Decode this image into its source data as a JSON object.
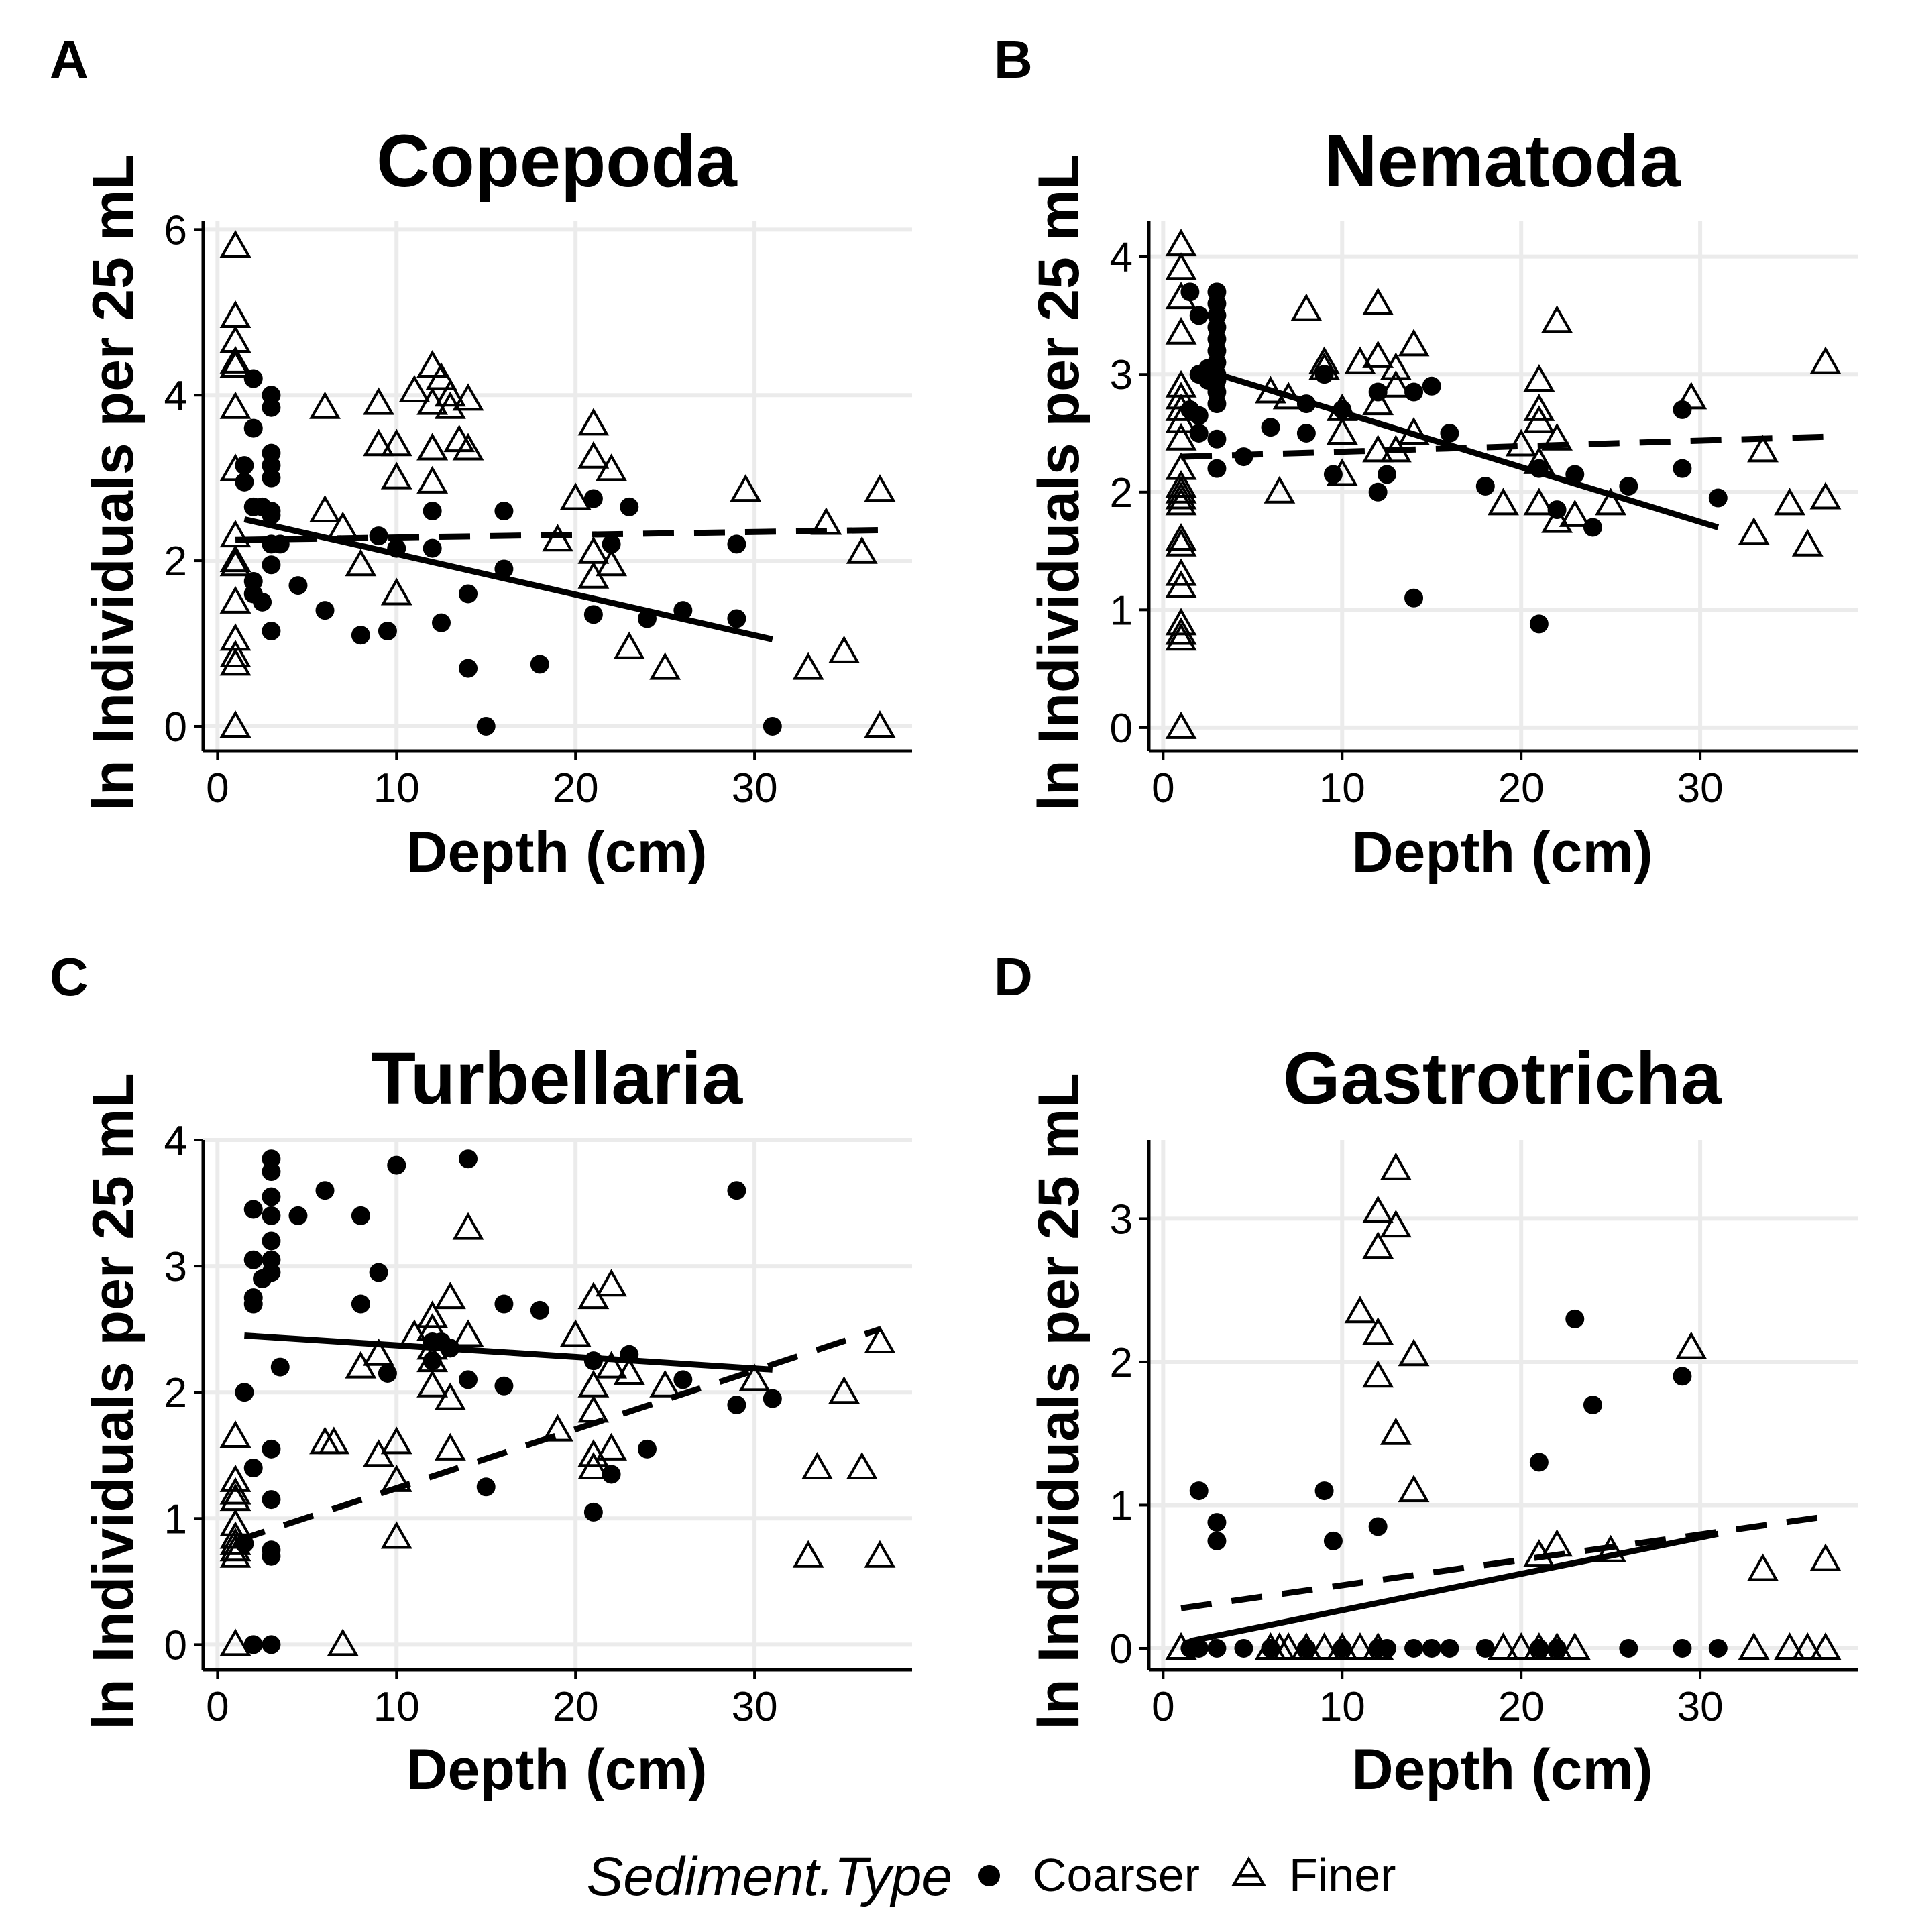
{
  "legend": {
    "title": "Sediment.Type",
    "items": [
      {
        "label": "Coarser",
        "shape": "circle"
      },
      {
        "label": "Finer",
        "shape": "triangle"
      }
    ]
  },
  "colors": {
    "ink": "#000000",
    "grid": "#ebebeb",
    "background": "#ffffff"
  },
  "chart_data": [
    {
      "type": "scatter",
      "panel": "A",
      "title": "Copepoda",
      "xlabel": "Depth (cm)",
      "ylabel": "ln Individuals per 25 mL",
      "xlim": [
        -0.8,
        38.8
      ],
      "ylim": [
        -0.3,
        6.1
      ],
      "xticks": [
        0,
        10,
        20,
        30
      ],
      "yticks": [
        0,
        2,
        4,
        6
      ],
      "grid": true,
      "series": [
        {
          "name": "Coarser",
          "shape": "circle",
          "x": [
            1.5,
            1.5,
            2,
            2,
            2,
            2,
            2,
            2.5,
            2.5,
            3,
            3,
            3,
            3,
            3,
            3,
            3,
            3,
            3,
            3,
            3.5,
            4.5,
            6,
            8,
            9,
            9.5,
            10,
            12,
            12,
            12.5,
            14,
            14,
            15,
            16,
            16,
            18,
            21,
            21,
            22,
            23,
            24,
            26,
            29,
            29,
            31
          ],
          "y": [
            3.15,
            2.95,
            4.2,
            3.6,
            2.65,
            1.75,
            1.6,
            1.5,
            2.65,
            4.0,
            3.85,
            3.3,
            3.15,
            3.0,
            2.6,
            2.55,
            2.2,
            1.95,
            1.15,
            2.2,
            1.7,
            1.4,
            1.1,
            2.3,
            1.15,
            2.15,
            2.6,
            2.15,
            1.25,
            1.6,
            0.7,
            0.0,
            1.9,
            2.6,
            0.75,
            2.75,
            1.35,
            2.2,
            2.65,
            1.3,
            1.4,
            2.2,
            1.3,
            0.0
          ]
        },
        {
          "name": "Finer",
          "shape": "triangle",
          "x": [
            1,
            1,
            1,
            1,
            1,
            1,
            1,
            1,
            1,
            1,
            1,
            1,
            1,
            1,
            1,
            6,
            6,
            7,
            8,
            9,
            9,
            10,
            10,
            10,
            11,
            12,
            12,
            12,
            12,
            12,
            12.5,
            13,
            13,
            13.5,
            14,
            14,
            19,
            20,
            21,
            21,
            21,
            21,
            22,
            22,
            23,
            25,
            29.5,
            33,
            34,
            35,
            36,
            37,
            37
          ],
          "y": [
            5.8,
            4.95,
            4.65,
            4.4,
            4.35,
            3.85,
            3.1,
            2.3,
            2.0,
            1.95,
            1.5,
            1.05,
            0.85,
            0.75,
            0.0,
            2.6,
            3.85,
            2.4,
            1.95,
            3.4,
            3.9,
            3.4,
            3.0,
            1.6,
            4.05,
            4.35,
            3.9,
            3.35,
            3.35,
            2.95,
            4.2,
            3.85,
            4.0,
            3.45,
            3.95,
            3.35,
            2.25,
            2.75,
            3.65,
            3.25,
            2.1,
            1.8,
            3.1,
            1.95,
            0.95,
            0.7,
            2.85,
            0.7,
            2.45,
            0.9,
            2.1,
            2.85,
            0.0
          ]
        }
      ],
      "fits": [
        {
          "series": "Coarser",
          "style": "solid",
          "x": [
            1.5,
            31
          ],
          "y": [
            2.5,
            1.05
          ]
        },
        {
          "series": "Finer",
          "style": "dashed",
          "x": [
            1,
            37
          ],
          "y": [
            2.25,
            2.37
          ]
        }
      ]
    },
    {
      "type": "scatter",
      "panel": "B",
      "title": "Nematoda",
      "xlabel": "Depth (cm)",
      "ylabel": "ln Individuals per 25 mL",
      "xlim": [
        -0.8,
        38.8
      ],
      "ylim": [
        -0.2,
        4.3
      ],
      "xticks": [
        0,
        10,
        20,
        30
      ],
      "yticks": [
        0,
        1,
        2,
        3,
        4
      ],
      "grid": true,
      "series": [
        {
          "name": "Coarser",
          "shape": "circle",
          "x": [
            1.5,
            1.5,
            2,
            2,
            2,
            2,
            2.5,
            2.5,
            3,
            3,
            3,
            3,
            3,
            3,
            3,
            3,
            3,
            3,
            3,
            3,
            3,
            4.5,
            6,
            8,
            8,
            9,
            9.5,
            10,
            12,
            12,
            12.5,
            14,
            14,
            15,
            16,
            18,
            21,
            21,
            22,
            23,
            24,
            26,
            29,
            29,
            31
          ],
          "y": [
            3.7,
            2.7,
            3.5,
            3.0,
            2.65,
            2.5,
            3.05,
            2.95,
            3.7,
            3.6,
            3.5,
            3.4,
            3.3,
            3.2,
            3.1,
            3.0,
            2.95,
            2.85,
            2.75,
            2.45,
            2.2,
            2.3,
            2.55,
            2.75,
            2.5,
            3.0,
            2.15,
            2.7,
            2.85,
            2.0,
            2.15,
            2.85,
            1.1,
            2.9,
            2.5,
            2.05,
            2.2,
            0.88,
            1.85,
            2.15,
            1.7,
            2.05,
            2.7,
            2.2,
            1.95
          ]
        },
        {
          "name": "Finer",
          "shape": "triangle",
          "x": [
            1,
            1,
            1,
            1,
            1,
            1,
            1,
            1,
            1,
            1,
            1,
            1,
            1,
            1,
            1,
            1,
            1,
            1,
            1,
            1,
            1,
            1,
            6,
            6.5,
            7,
            8,
            9,
            9,
            10,
            10,
            10,
            11,
            12,
            12,
            12,
            12,
            13,
            13,
            13,
            14,
            14,
            20,
            19,
            21,
            21,
            21,
            21,
            21,
            22,
            22,
            22,
            23,
            25,
            29.5,
            33,
            33.5,
            35,
            36,
            37,
            37
          ],
          "y": [
            4.1,
            3.9,
            3.65,
            3.35,
            2.9,
            2.8,
            2.7,
            2.6,
            2.45,
            2.2,
            2.05,
            2.0,
            1.95,
            1.9,
            1.6,
            1.55,
            1.3,
            1.2,
            0.88,
            0.8,
            0.75,
            0.0,
            2.85,
            2.0,
            2.8,
            3.55,
            3.1,
            3.05,
            2.7,
            2.5,
            2.15,
            3.1,
            3.6,
            3.15,
            2.75,
            2.35,
            3.05,
            2.9,
            2.35,
            3.25,
            2.5,
            2.4,
            1.9,
            2.95,
            2.7,
            2.6,
            2.25,
            1.9,
            3.45,
            2.45,
            1.75,
            1.8,
            1.9,
            2.8,
            1.65,
            2.35,
            1.9,
            1.55,
            3.1,
            1.95
          ]
        }
      ],
      "fits": [
        {
          "series": "Coarser",
          "style": "solid",
          "x": [
            2,
            31
          ],
          "y": [
            3.05,
            1.7
          ]
        },
        {
          "series": "Finer",
          "style": "dashed",
          "x": [
            1,
            37
          ],
          "y": [
            2.3,
            2.47
          ]
        }
      ]
    },
    {
      "type": "scatter",
      "panel": "C",
      "title": "Turbellaria",
      "xlabel": "Depth (cm)",
      "ylabel": "ln Individuals per 25 mL",
      "xlim": [
        -0.8,
        38.8
      ],
      "ylim": [
        -0.2,
        4.0
      ],
      "xticks": [
        0,
        10,
        20,
        30
      ],
      "yticks": [
        0,
        1,
        2,
        3,
        4
      ],
      "grid": true,
      "series": [
        {
          "name": "Coarser",
          "shape": "circle",
          "x": [
            1.5,
            1.5,
            2,
            2,
            2,
            2,
            2,
            2,
            2.5,
            3,
            3,
            3,
            3,
            3,
            3,
            3,
            3,
            3,
            3,
            3,
            3,
            3.5,
            4.5,
            6,
            8,
            8,
            9,
            9.5,
            10,
            12,
            12,
            12.5,
            13,
            14,
            14,
            15,
            16,
            16,
            18,
            21,
            21,
            22,
            23,
            24,
            26,
            29,
            29,
            31
          ],
          "y": [
            2.0,
            0.8,
            3.45,
            3.05,
            2.75,
            2.7,
            1.4,
            0.0,
            2.9,
            3.85,
            3.75,
            3.55,
            3.4,
            3.2,
            3.05,
            2.95,
            1.55,
            1.15,
            0.75,
            0.7,
            0.0,
            2.2,
            3.4,
            3.6,
            3.4,
            2.7,
            2.95,
            2.15,
            3.8,
            2.4,
            2.25,
            2.4,
            2.35,
            3.85,
            2.1,
            1.25,
            2.7,
            2.05,
            2.65,
            2.25,
            1.05,
            1.35,
            2.3,
            1.55,
            2.1,
            3.6,
            1.9,
            1.95
          ]
        },
        {
          "name": "Finer",
          "shape": "triangle",
          "x": [
            1,
            1,
            1,
            1,
            1,
            1,
            1,
            1,
            1,
            1,
            6,
            6.5,
            7,
            8,
            9,
            9,
            10,
            10,
            10,
            11,
            12,
            12,
            12,
            12,
            12,
            13,
            13,
            13,
            14,
            14,
            19,
            20,
            21,
            21,
            21,
            21,
            21,
            22,
            22,
            22,
            23,
            25,
            30,
            33,
            33.5,
            35,
            36,
            37,
            37
          ],
          "y": [
            1.65,
            1.3,
            1.2,
            1.15,
            0.95,
            0.85,
            0.8,
            0.75,
            0.7,
            0.0,
            1.6,
            1.6,
            0.0,
            2.2,
            2.3,
            1.5,
            1.6,
            1.3,
            0.85,
            2.45,
            2.6,
            2.5,
            2.35,
            2.25,
            2.05,
            2.75,
            1.95,
            1.55,
            3.3,
            2.45,
            1.7,
            2.45,
            2.75,
            2.05,
            1.85,
            1.5,
            1.4,
            2.85,
            2.2,
            1.55,
            2.15,
            2.05,
            2.1,
            0.7,
            1.4,
            2.0,
            1.4,
            2.4,
            0.7
          ]
        }
      ],
      "fits": [
        {
          "series": "Coarser",
          "style": "solid",
          "x": [
            1.5,
            31
          ],
          "y": [
            2.45,
            2.18
          ]
        },
        {
          "series": "Finer",
          "style": "dashed",
          "x": [
            1,
            37
          ],
          "y": [
            0.82,
            2.5
          ]
        }
      ]
    },
    {
      "type": "scatter",
      "panel": "D",
      "title": "Gastrotricha",
      "xlabel": "Depth (cm)",
      "ylabel": "ln Individuals per 25 mL",
      "xlim": [
        -0.8,
        38.8
      ],
      "ylim": [
        -0.15,
        3.55
      ],
      "xticks": [
        0,
        10,
        20,
        30
      ],
      "yticks": [
        0,
        1,
        2,
        3
      ],
      "grid": true,
      "series": [
        {
          "name": "Coarser",
          "shape": "circle",
          "x": [
            1.5,
            2,
            2,
            3,
            3,
            3,
            4.5,
            6,
            8,
            9,
            9.5,
            10,
            12,
            12,
            12.5,
            14,
            15,
            16,
            18,
            21,
            21,
            22,
            23,
            24,
            26,
            29,
            29,
            31
          ],
          "y": [
            0.0,
            1.1,
            0.0,
            0.88,
            0.75,
            0.0,
            0.0,
            0.0,
            0.0,
            1.1,
            0.75,
            0.0,
            0.85,
            0.0,
            0.0,
            0.0,
            0.0,
            0.0,
            0.0,
            1.3,
            0.0,
            0.0,
            2.3,
            1.7,
            0.0,
            1.9,
            0.0,
            0.0
          ]
        },
        {
          "name": "Finer",
          "shape": "triangle",
          "x": [
            1,
            1,
            1,
            6,
            6.5,
            7,
            8,
            9,
            10,
            11,
            11,
            12,
            12,
            12,
            12,
            12,
            13,
            13,
            13,
            14,
            14,
            19,
            20,
            21,
            21,
            21,
            22,
            22,
            23,
            25,
            29.5,
            33,
            33.5,
            35,
            36,
            37,
            37
          ],
          "y": [
            0.0,
            0.0,
            0.0,
            0.0,
            0.0,
            0.0,
            0.0,
            0.0,
            0.0,
            2.35,
            0.0,
            3.05,
            2.8,
            2.2,
            1.9,
            0.0,
            3.35,
            2.95,
            1.5,
            2.05,
            1.1,
            0.0,
            0.0,
            0.65,
            0.65,
            0.0,
            0.72,
            0.0,
            0.0,
            0.68,
            2.1,
            0.0,
            0.55,
            0.0,
            0.0,
            0.62,
            0.0
          ]
        }
      ],
      "fits": [
        {
          "series": "Coarser",
          "style": "solid",
          "x": [
            1.5,
            31
          ],
          "y": [
            0.05,
            0.8
          ]
        },
        {
          "series": "Finer",
          "style": "dashed",
          "x": [
            1,
            37
          ],
          "y": [
            0.28,
            0.92
          ]
        }
      ]
    }
  ]
}
